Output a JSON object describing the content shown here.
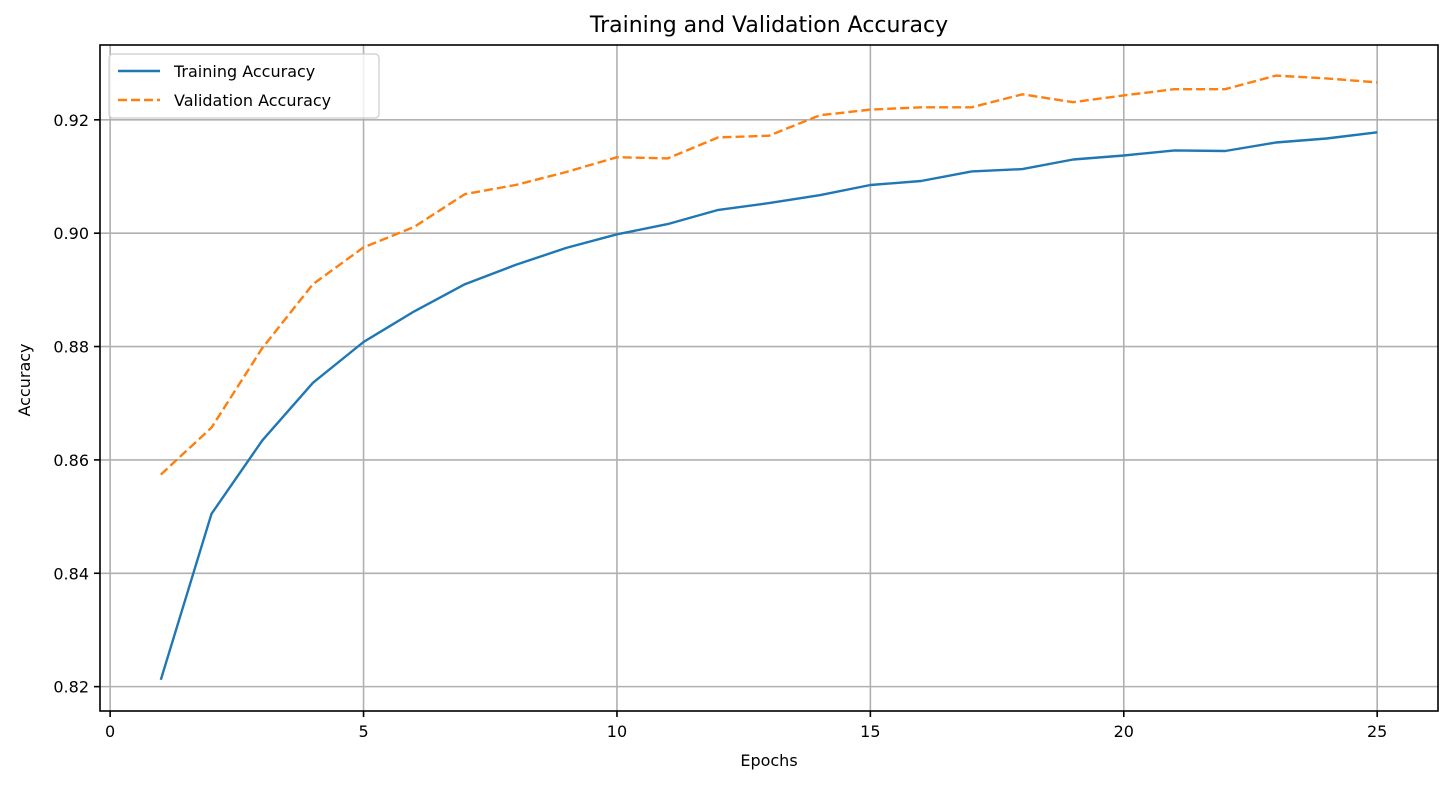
{
  "chart_data": {
    "type": "line",
    "title": "Training and Validation Accuracy",
    "xlabel": "Epochs",
    "ylabel": "Accuracy",
    "x": [
      1,
      2,
      3,
      4,
      5,
      6,
      7,
      8,
      9,
      10,
      11,
      12,
      13,
      14,
      15,
      16,
      17,
      18,
      19,
      20,
      21,
      22,
      23,
      24,
      25
    ],
    "series": [
      {
        "name": "Training Accuracy",
        "color": "#1f77b4",
        "linestyle": "solid",
        "values": [
          0.8212,
          0.8505,
          0.8634,
          0.8736,
          0.8808,
          0.8862,
          0.891,
          0.8944,
          0.8974,
          0.8998,
          0.9016,
          0.9041,
          0.9053,
          0.9067,
          0.9085,
          0.9092,
          0.9109,
          0.9113,
          0.913,
          0.9137,
          0.9146,
          0.9145,
          0.916,
          0.9167,
          0.9178
        ]
      },
      {
        "name": "Validation Accuracy",
        "color": "#ff7f0e",
        "linestyle": "dashed",
        "values": [
          0.8574,
          0.8657,
          0.8797,
          0.891,
          0.8975,
          0.9011,
          0.9069,
          0.9085,
          0.9108,
          0.9134,
          0.9132,
          0.9169,
          0.9172,
          0.9208,
          0.9218,
          0.9222,
          0.9222,
          0.9245,
          0.9231,
          0.9243,
          0.9254,
          0.9254,
          0.9278,
          0.9273,
          0.9266
        ]
      }
    ],
    "xticks": [
      0,
      5,
      10,
      15,
      20,
      25
    ],
    "xtick_labels": [
      "0",
      "5",
      "10",
      "15",
      "20",
      "25"
    ],
    "yticks": [
      0.82,
      0.84,
      0.86,
      0.88,
      0.9,
      0.92
    ],
    "ytick_labels": [
      "0.82",
      "0.84",
      "0.86",
      "0.88",
      "0.90",
      "0.92"
    ],
    "xlim": [
      -0.2,
      26.2
    ],
    "ylim": [
      0.8157,
      0.9332
    ],
    "grid": true,
    "legend_position": "upper left"
  }
}
